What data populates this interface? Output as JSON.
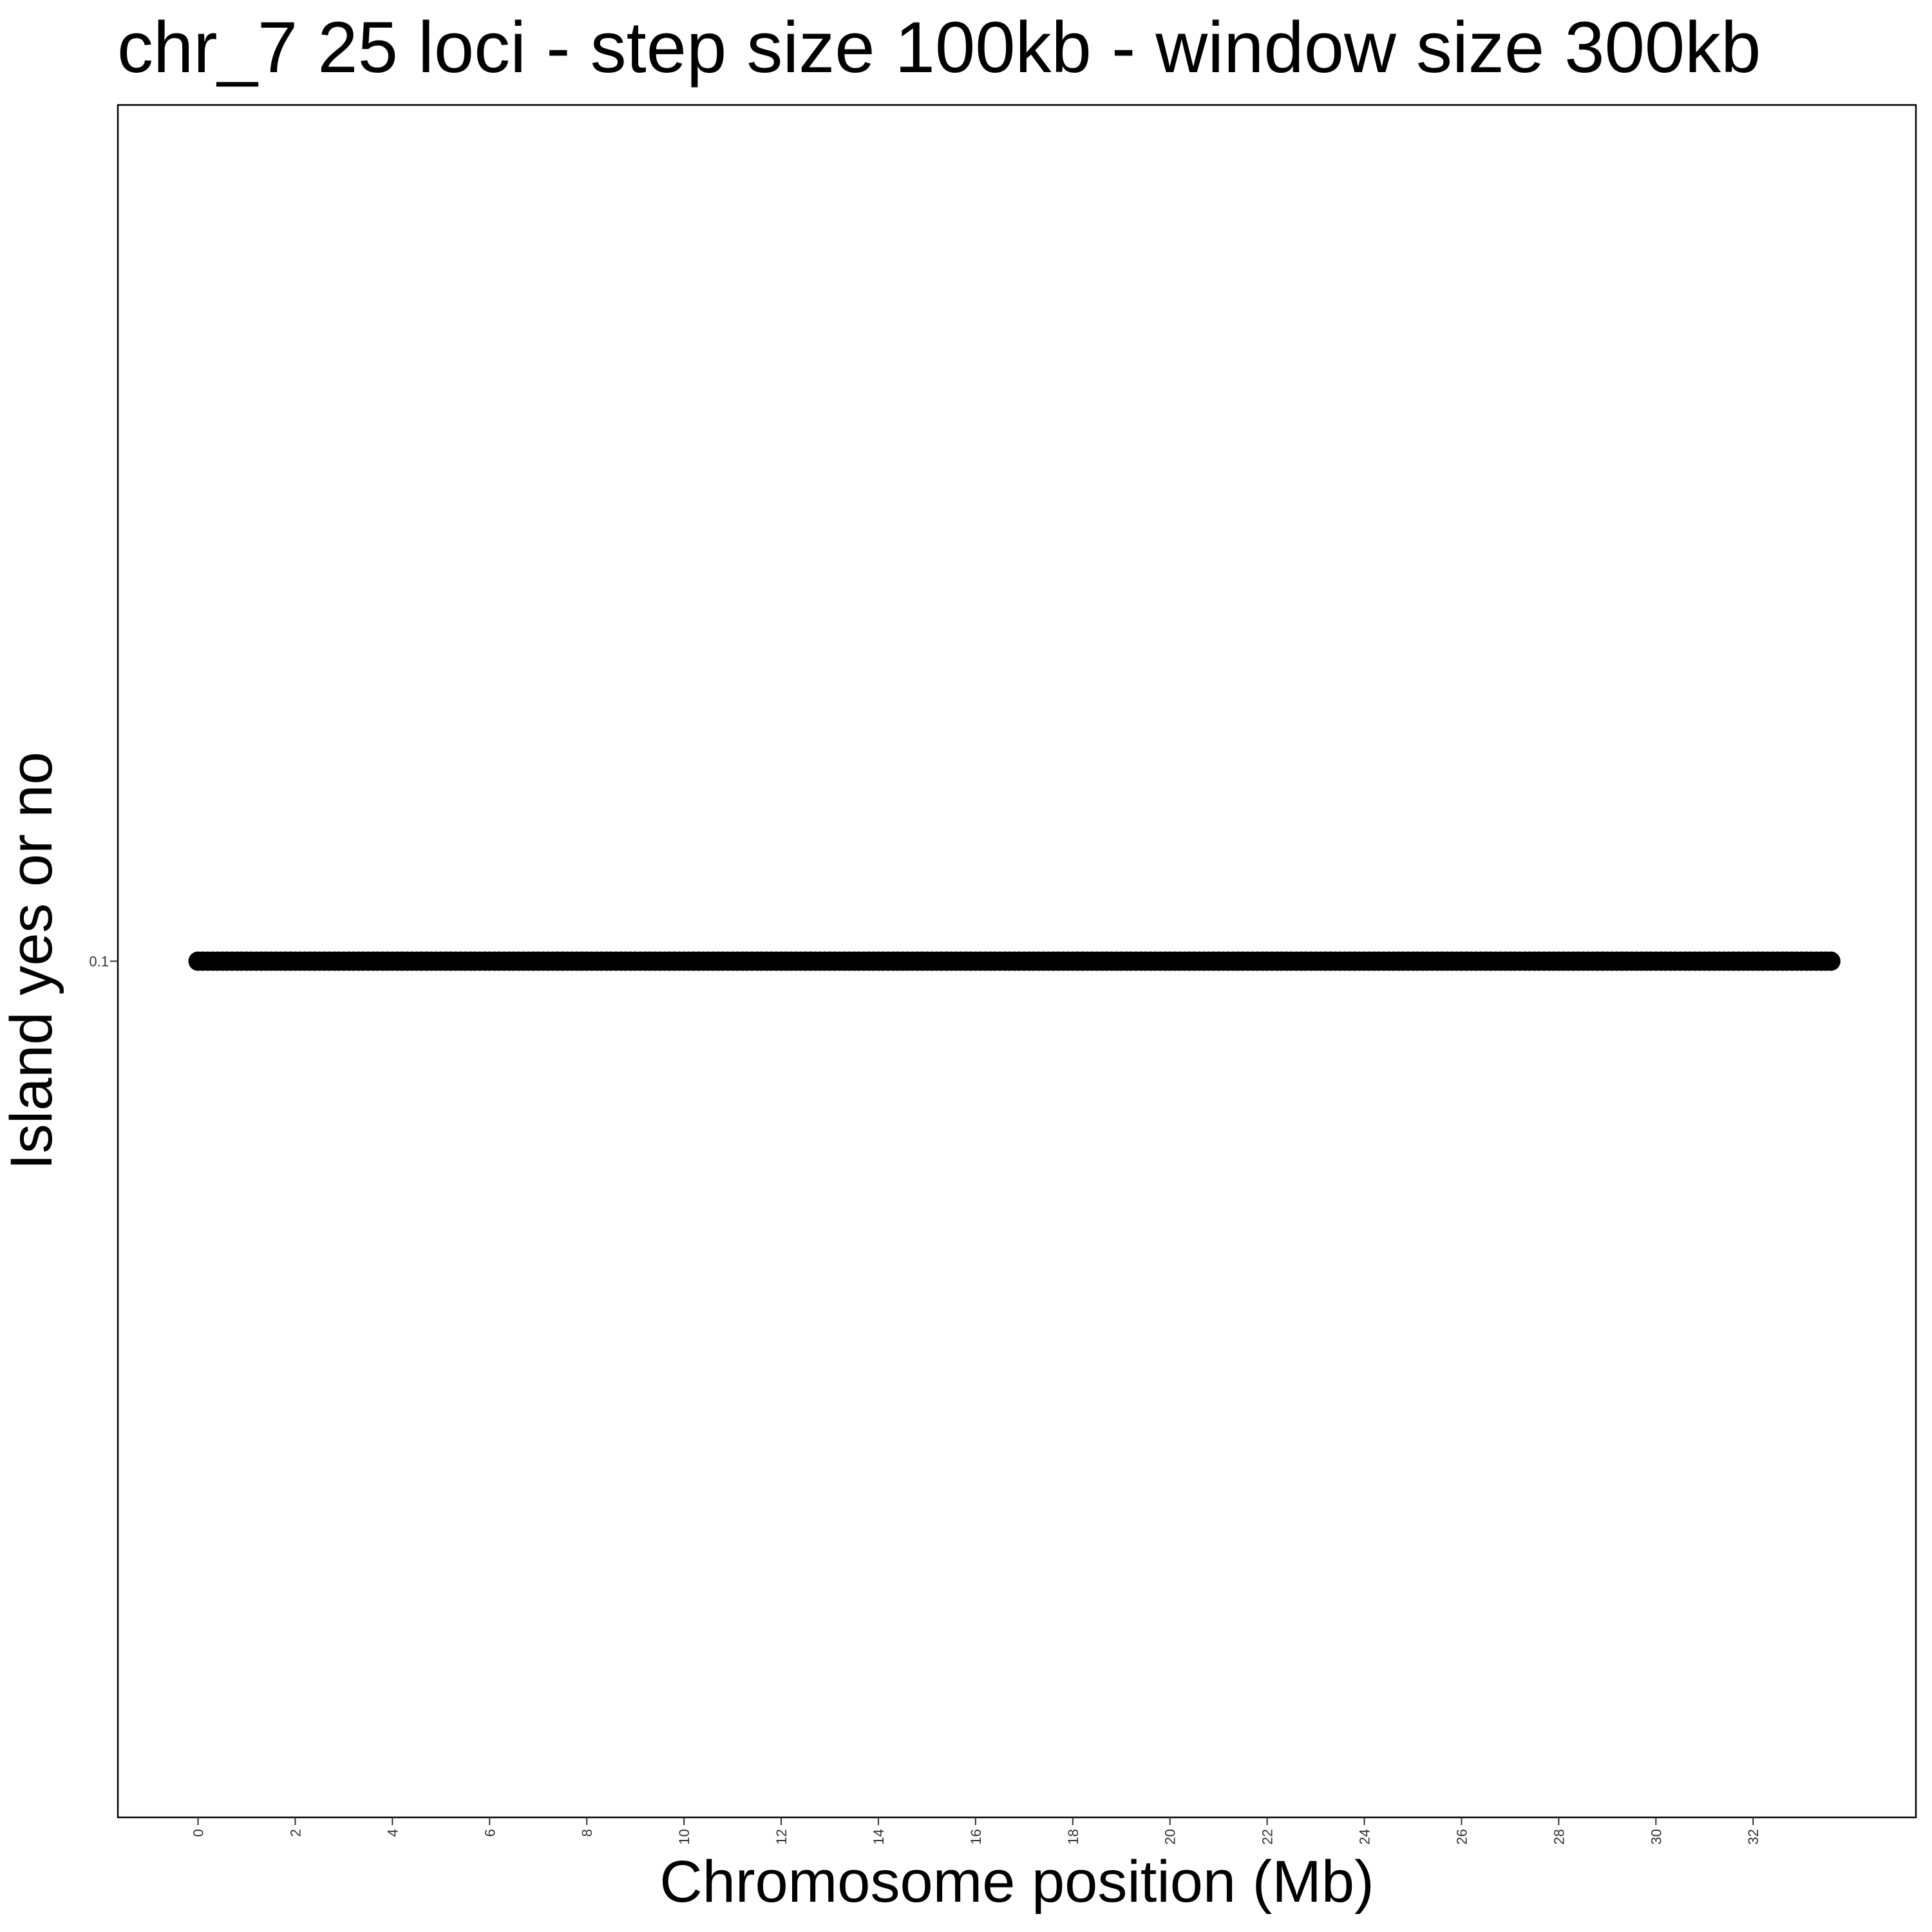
{
  "chart_data": {
    "type": "scatter",
    "title": "chr_7 25 loci - step size 100kb - window size 300kb",
    "xlabel": "Chromosome position (Mb)",
    "ylabel": "Island yes or no",
    "x_ticks": [
      0,
      2,
      4,
      6,
      8,
      10,
      12,
      14,
      16,
      18,
      20,
      22,
      24,
      26,
      28,
      30,
      32
    ],
    "y_ticks": [
      0.1
    ],
    "xlim": [
      -1.65,
      35.35
    ],
    "ylim": [
      0.05,
      0.15
    ],
    "x_start": 0,
    "x_end": 33.6,
    "x_step": 0.1,
    "y_value": 0.1,
    "point_color": "#000000",
    "grid": false,
    "legend": "none"
  }
}
